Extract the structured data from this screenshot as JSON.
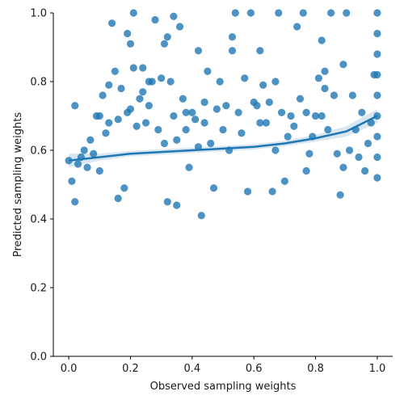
{
  "chart_data": {
    "type": "scatter",
    "title": "",
    "xlabel": "Observed sampling weights",
    "ylabel": "Predicted sampling weights",
    "xlim": [
      -0.05,
      1.05
    ],
    "ylim": [
      0.0,
      1.0
    ],
    "x_ticks": [
      {
        "value": 0.0,
        "label": "0.0"
      },
      {
        "value": 0.2,
        "label": "0.2"
      },
      {
        "value": 0.4,
        "label": "0.4"
      },
      {
        "value": 0.6,
        "label": "0.6"
      },
      {
        "value": 0.8,
        "label": "0.8"
      },
      {
        "value": 1.0,
        "label": "1.0"
      }
    ],
    "y_ticks": [
      {
        "value": 0.0,
        "label": "0.0"
      },
      {
        "value": 0.2,
        "label": "0.2"
      },
      {
        "value": 0.4,
        "label": "0.4"
      },
      {
        "value": 0.6,
        "label": "0.6"
      },
      {
        "value": 0.8,
        "label": "0.8"
      },
      {
        "value": 1.0,
        "label": "1.0"
      }
    ],
    "grid": false,
    "legend": "none",
    "point_color": "#1f77b4",
    "points": [
      [
        0.0,
        0.57
      ],
      [
        0.01,
        0.51
      ],
      [
        0.02,
        0.45
      ],
      [
        0.02,
        0.73
      ],
      [
        0.03,
        0.56
      ],
      [
        0.04,
        0.58
      ],
      [
        0.05,
        0.6
      ],
      [
        0.06,
        0.55
      ],
      [
        0.07,
        0.63
      ],
      [
        0.08,
        0.59
      ],
      [
        0.09,
        0.7
      ],
      [
        0.1,
        0.7
      ],
      [
        0.1,
        0.54
      ],
      [
        0.11,
        0.76
      ],
      [
        0.12,
        0.65
      ],
      [
        0.13,
        0.79
      ],
      [
        0.13,
        0.68
      ],
      [
        0.14,
        0.97
      ],
      [
        0.15,
        0.83
      ],
      [
        0.16,
        0.46
      ],
      [
        0.16,
        0.69
      ],
      [
        0.17,
        0.78
      ],
      [
        0.18,
        0.49
      ],
      [
        0.19,
        0.94
      ],
      [
        0.19,
        0.71
      ],
      [
        0.2,
        0.91
      ],
      [
        0.2,
        0.72
      ],
      [
        0.21,
        1.0
      ],
      [
        0.21,
        0.84
      ],
      [
        0.22,
        0.67
      ],
      [
        0.23,
        0.75
      ],
      [
        0.24,
        0.77
      ],
      [
        0.24,
        0.84
      ],
      [
        0.25,
        0.68
      ],
      [
        0.26,
        0.73
      ],
      [
        0.26,
        0.8
      ],
      [
        0.27,
        0.8
      ],
      [
        0.28,
        0.98
      ],
      [
        0.29,
        0.66
      ],
      [
        0.3,
        0.81
      ],
      [
        0.31,
        0.91
      ],
      [
        0.31,
        0.62
      ],
      [
        0.32,
        0.45
      ],
      [
        0.32,
        0.93
      ],
      [
        0.33,
        0.8
      ],
      [
        0.34,
        0.99
      ],
      [
        0.34,
        0.7
      ],
      [
        0.35,
        0.63
      ],
      [
        0.35,
        0.44
      ],
      [
        0.36,
        0.96
      ],
      [
        0.37,
        0.75
      ],
      [
        0.38,
        0.66
      ],
      [
        0.38,
        0.71
      ],
      [
        0.39,
        0.55
      ],
      [
        0.4,
        0.71
      ],
      [
        0.41,
        0.69
      ],
      [
        0.42,
        0.61
      ],
      [
        0.42,
        0.89
      ],
      [
        0.43,
        0.41
      ],
      [
        0.44,
        0.68
      ],
      [
        0.44,
        0.74
      ],
      [
        0.45,
        0.83
      ],
      [
        0.46,
        0.62
      ],
      [
        0.47,
        0.49
      ],
      [
        0.48,
        0.72
      ],
      [
        0.49,
        0.8
      ],
      [
        0.5,
        0.66
      ],
      [
        0.51,
        0.73
      ],
      [
        0.52,
        0.6
      ],
      [
        0.53,
        0.93
      ],
      [
        0.53,
        0.89
      ],
      [
        0.54,
        1.0
      ],
      [
        0.55,
        0.71
      ],
      [
        0.56,
        0.65
      ],
      [
        0.57,
        0.81
      ],
      [
        0.58,
        0.48
      ],
      [
        0.59,
        1.0
      ],
      [
        0.6,
        0.74
      ],
      [
        0.61,
        0.73
      ],
      [
        0.62,
        0.89
      ],
      [
        0.62,
        0.68
      ],
      [
        0.63,
        0.79
      ],
      [
        0.64,
        0.68
      ],
      [
        0.65,
        0.74
      ],
      [
        0.66,
        0.48
      ],
      [
        0.67,
        0.8
      ],
      [
        0.67,
        0.6
      ],
      [
        0.68,
        1.0
      ],
      [
        0.69,
        0.71
      ],
      [
        0.7,
        0.51
      ],
      [
        0.71,
        0.64
      ],
      [
        0.72,
        0.7
      ],
      [
        0.73,
        0.67
      ],
      [
        0.74,
        0.96
      ],
      [
        0.75,
        0.75
      ],
      [
        0.76,
        1.0
      ],
      [
        0.77,
        0.71
      ],
      [
        0.77,
        0.54
      ],
      [
        0.78,
        0.59
      ],
      [
        0.79,
        0.64
      ],
      [
        0.8,
        0.7
      ],
      [
        0.81,
        0.81
      ],
      [
        0.82,
        0.92
      ],
      [
        0.82,
        0.7
      ],
      [
        0.83,
        0.78
      ],
      [
        0.83,
        0.83
      ],
      [
        0.84,
        0.66
      ],
      [
        0.85,
        1.0
      ],
      [
        0.86,
        0.76
      ],
      [
        0.87,
        0.59
      ],
      [
        0.88,
        0.47
      ],
      [
        0.89,
        0.85
      ],
      [
        0.89,
        0.55
      ],
      [
        0.9,
        1.0
      ],
      [
        0.91,
        0.6
      ],
      [
        0.92,
        0.76
      ],
      [
        0.93,
        0.66
      ],
      [
        0.94,
        0.58
      ],
      [
        0.95,
        0.71
      ],
      [
        0.96,
        0.54
      ],
      [
        0.97,
        0.62
      ],
      [
        0.98,
        0.68
      ],
      [
        0.99,
        0.82
      ],
      [
        1.0,
        0.52
      ],
      [
        1.0,
        0.58
      ],
      [
        1.0,
        0.64
      ],
      [
        1.0,
        0.7
      ],
      [
        1.0,
        0.76
      ],
      [
        1.0,
        0.82
      ],
      [
        1.0,
        0.88
      ],
      [
        1.0,
        0.94
      ],
      [
        1.0,
        1.0
      ]
    ],
    "regression": {
      "type": "lowess-like trend",
      "x": [
        0.0,
        0.1,
        0.2,
        0.3,
        0.4,
        0.5,
        0.6,
        0.7,
        0.8,
        0.9,
        1.0
      ],
      "y": [
        0.57,
        0.58,
        0.59,
        0.595,
        0.6,
        0.605,
        0.61,
        0.62,
        0.635,
        0.655,
        0.7
      ],
      "ci_half_width": [
        0.02,
        0.01,
        0.008,
        0.008,
        0.008,
        0.008,
        0.008,
        0.008,
        0.01,
        0.015,
        0.02
      ]
    }
  }
}
